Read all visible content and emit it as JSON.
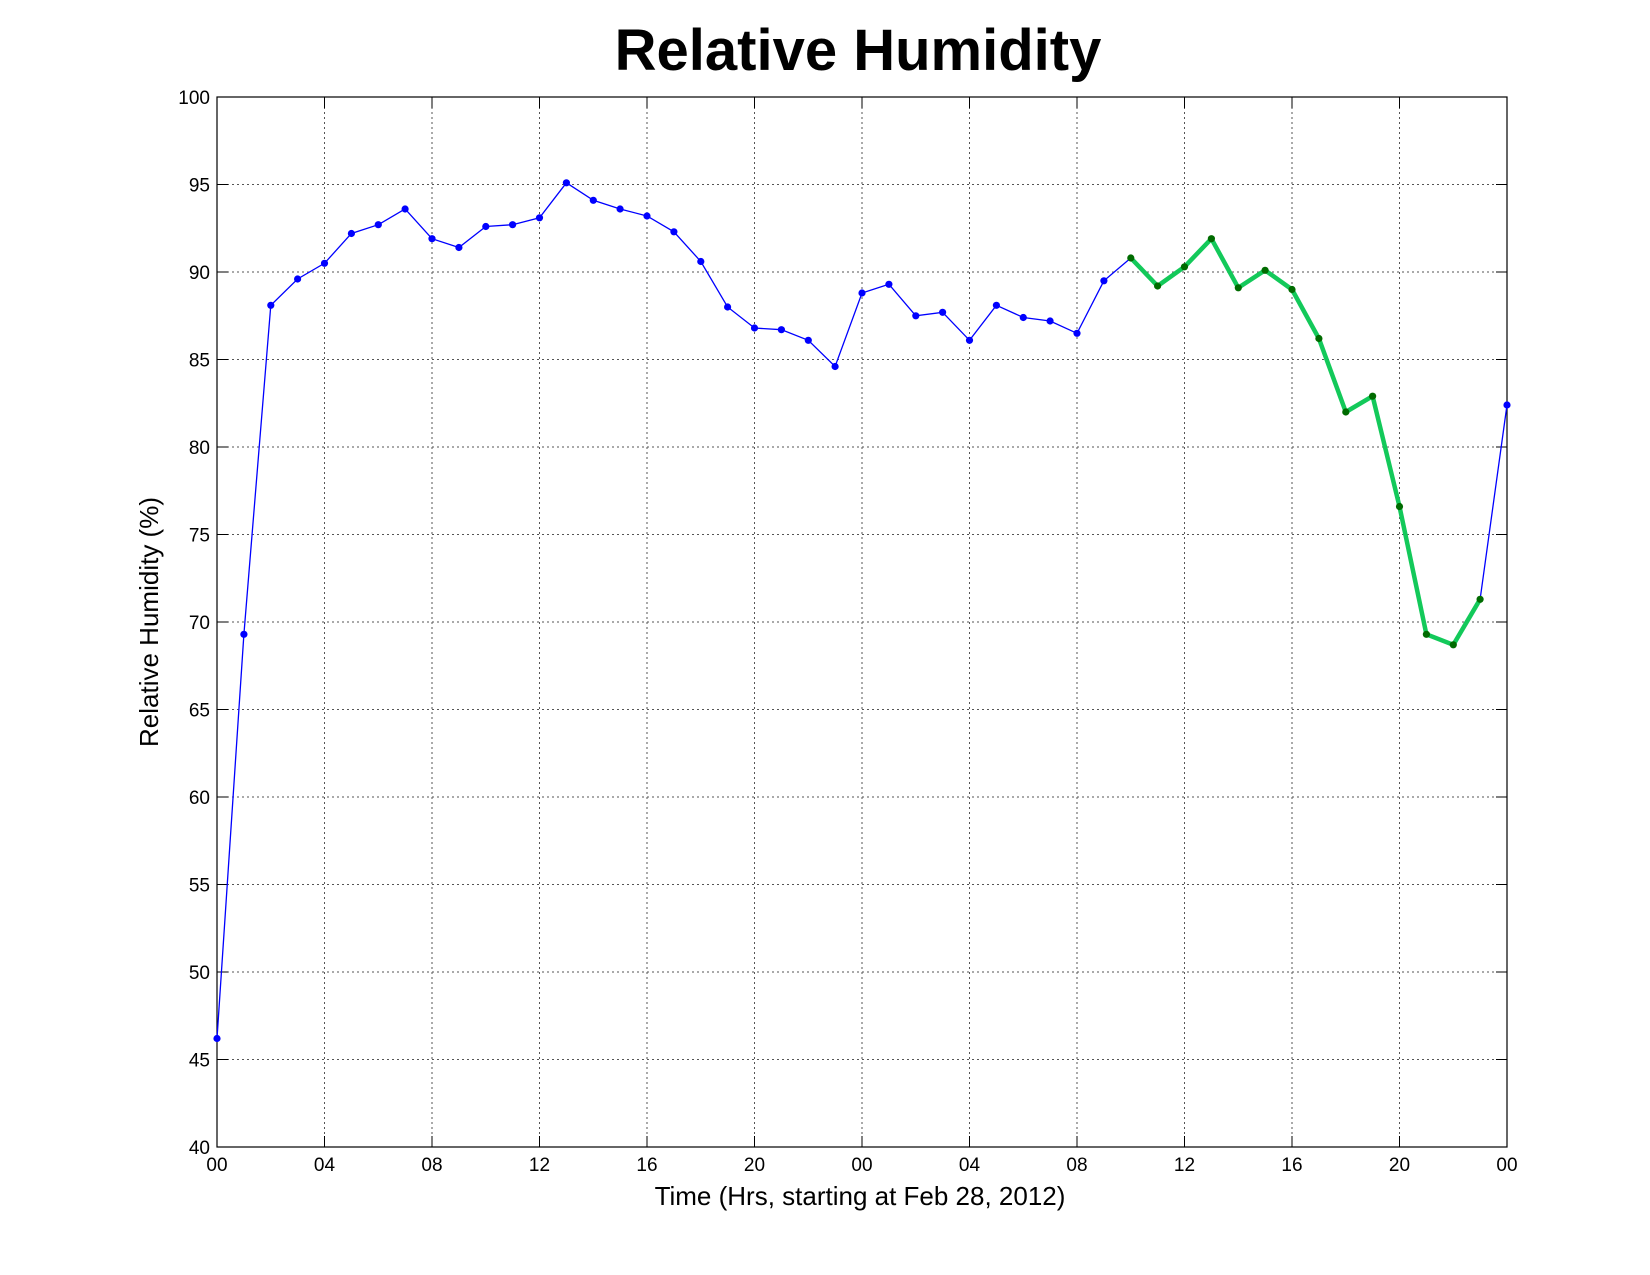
{
  "chart_data": {
    "type": "line",
    "title": "Relative Humidity",
    "xlabel": "Time (Hrs, starting at Feb 28, 2012)",
    "ylabel": "Relative Humidity (%)",
    "xlim": [
      0,
      48
    ],
    "ylim": [
      40,
      100
    ],
    "grid": true,
    "xticks": [
      0,
      4,
      8,
      12,
      16,
      20,
      24,
      28,
      32,
      36,
      40,
      44,
      48
    ],
    "xtick_labels": [
      "00",
      "04",
      "08",
      "12",
      "16",
      "20",
      "00",
      "04",
      "08",
      "12",
      "16",
      "20",
      "00"
    ],
    "yticks": [
      40,
      45,
      50,
      55,
      60,
      65,
      70,
      75,
      80,
      85,
      90,
      95,
      100
    ],
    "ytick_labels": [
      "40",
      "45",
      "50",
      "55",
      "60",
      "65",
      "70",
      "75",
      "80",
      "85",
      "90",
      "95",
      "100"
    ],
    "x": [
      0,
      1,
      2,
      3,
      4,
      5,
      6,
      7,
      8,
      9,
      10,
      11,
      12,
      13,
      14,
      15,
      16,
      17,
      18,
      19,
      20,
      21,
      22,
      23,
      24,
      25,
      26,
      27,
      28,
      29,
      30,
      31,
      32,
      33,
      34,
      35,
      36,
      37,
      38,
      39,
      40,
      41,
      42,
      43,
      44,
      45,
      46,
      47,
      48
    ],
    "values": [
      46.2,
      69.3,
      88.1,
      89.6,
      90.5,
      92.2,
      92.7,
      93.6,
      91.9,
      91.4,
      92.6,
      92.7,
      93.1,
      95.1,
      94.1,
      93.6,
      93.2,
      92.3,
      90.6,
      88.0,
      86.8,
      86.7,
      86.1,
      84.6,
      88.8,
      89.3,
      87.5,
      87.7,
      86.1,
      88.1,
      87.4,
      87.2,
      86.5,
      89.5,
      90.8,
      89.2,
      90.3,
      91.9,
      89.1,
      90.1,
      89.0,
      86.2,
      82.0,
      82.9,
      76.6,
      69.3,
      68.7,
      71.3,
      82.4
    ],
    "highlight_range": [
      34,
      47
    ],
    "colors": {
      "main_line": "#0000ff",
      "main_marker": "#0000ff",
      "highlight_line": "#13c95a",
      "highlight_marker": "#006b00"
    }
  }
}
